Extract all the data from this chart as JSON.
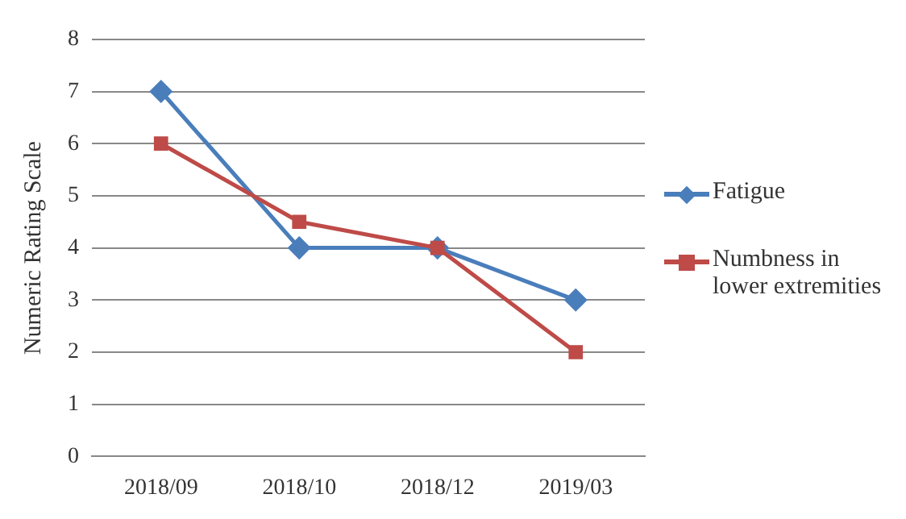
{
  "chart_data": {
    "type": "line",
    "ylabel": "Numeric Rating Scale",
    "categories": [
      "2018/09",
      "2018/10",
      "2018/12",
      "2019/03"
    ],
    "series": [
      {
        "name": "Fatigue",
        "color": "#4a7ebb",
        "marker": "diamond",
        "values": [
          7,
          4,
          4,
          3
        ]
      },
      {
        "name": "Numbness in lower extremities",
        "color": "#be4b48",
        "marker": "square",
        "values": [
          6,
          4.5,
          4,
          2
        ]
      }
    ],
    "ylim": [
      0,
      8
    ],
    "yticks": [
      0,
      1,
      2,
      3,
      4,
      5,
      6,
      7,
      8
    ],
    "grid": "y",
    "legend": "right",
    "line_style": "solid"
  }
}
